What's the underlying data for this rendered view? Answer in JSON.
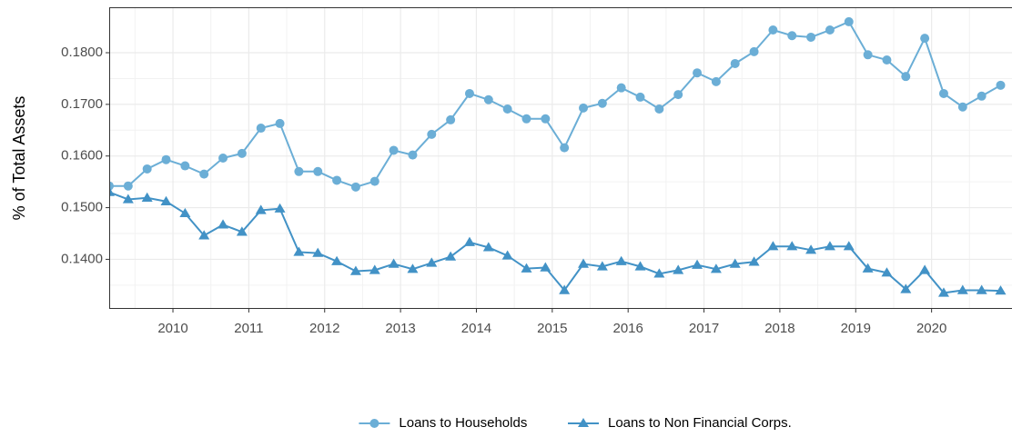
{
  "chart_data": {
    "type": "line",
    "y_label": "% of Total Assets",
    "x": [
      2009.16,
      2009.41,
      2009.66,
      2009.91,
      2010.16,
      2010.41,
      2010.66,
      2010.91,
      2011.16,
      2011.41,
      2011.66,
      2011.91,
      2012.16,
      2012.41,
      2012.66,
      2012.91,
      2013.16,
      2013.41,
      2013.66,
      2013.91,
      2014.16,
      2014.41,
      2014.66,
      2014.91,
      2015.16,
      2015.41,
      2015.66,
      2015.91,
      2016.16,
      2016.41,
      2016.66,
      2016.91,
      2017.16,
      2017.41,
      2017.66,
      2017.91,
      2018.16,
      2018.41,
      2018.66,
      2018.91,
      2019.16,
      2019.41,
      2019.66,
      2019.91,
      2020.16,
      2020.41,
      2020.66,
      2020.91
    ],
    "xlim": [
      2009.16,
      2021.06
    ],
    "xticks": [
      2010,
      2011,
      2012,
      2013,
      2014,
      2015,
      2016,
      2017,
      2018,
      2019,
      2020
    ],
    "ylim": [
      0.1304,
      0.1888
    ],
    "yticks": [
      {
        "value": 0.14,
        "label": "0.1400"
      },
      {
        "value": 0.15,
        "label": "0.1500"
      },
      {
        "value": 0.16,
        "label": "0.1600"
      },
      {
        "value": 0.17,
        "label": "0.1700"
      },
      {
        "value": 0.18,
        "label": "0.1800"
      }
    ],
    "grid": true,
    "legend": "bottom",
    "series": [
      {
        "name": "Loans to Households",
        "color": "#6baed6",
        "marker": "circle",
        "values": [
          0.1542,
          0.1542,
          0.1575,
          0.1593,
          0.1581,
          0.1565,
          0.1596,
          0.1605,
          0.1654,
          0.1663,
          0.157,
          0.157,
          0.1553,
          0.154,
          0.1551,
          0.1611,
          0.1602,
          0.1642,
          0.167,
          0.1721,
          0.1709,
          0.1691,
          0.1672,
          0.1672,
          0.1616,
          0.1693,
          0.1702,
          0.1732,
          0.1714,
          0.1691,
          0.1719,
          0.1761,
          0.1744,
          0.1779,
          0.1802,
          0.1844,
          0.1833,
          0.183,
          0.1844,
          0.186,
          0.1796,
          0.1786,
          0.1754,
          0.1828,
          0.1721,
          0.1695,
          0.1716,
          0.1737
        ]
      },
      {
        "name": "Loans to Non Financial Corps.",
        "color": "#4292c6",
        "marker": "triangle",
        "values": [
          0.153,
          0.1516,
          0.1519,
          0.1512,
          0.1489,
          0.1446,
          0.1467,
          0.1453,
          0.1495,
          0.1498,
          0.1414,
          0.1412,
          0.1396,
          0.1377,
          0.1379,
          0.1391,
          0.1381,
          0.1393,
          0.1405,
          0.1433,
          0.1423,
          0.1407,
          0.1382,
          0.1384,
          0.134,
          0.1391,
          0.1386,
          0.1396,
          0.1386,
          0.1372,
          0.1379,
          0.1389,
          0.1381,
          0.1391,
          0.1395,
          0.1425,
          0.1425,
          0.1418,
          0.1425,
          0.1425,
          0.1382,
          0.1374,
          0.1342,
          0.1379,
          0.1335,
          0.134,
          0.134,
          0.1339
        ]
      }
    ]
  }
}
